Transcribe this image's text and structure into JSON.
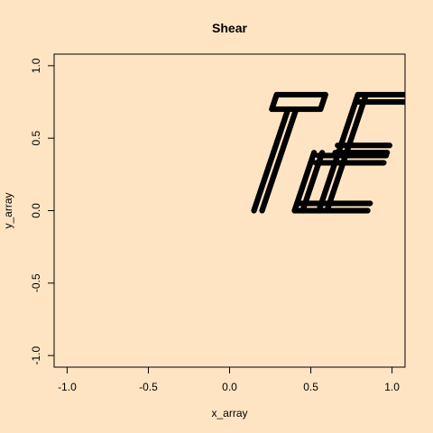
{
  "chart_data": {
    "type": "scatter",
    "title": "Shear",
    "xlabel": "x_array",
    "ylabel": "y_array",
    "xlim": [
      -1.08,
      1.08
    ],
    "ylim": [
      -1.08,
      1.08
    ],
    "xticks": [
      -1.0,
      -0.5,
      0.0,
      0.5,
      1.0
    ],
    "yticks": [
      -1.0,
      -0.5,
      0.0,
      0.5,
      1.0
    ],
    "xtick_labels": [
      "-1.0",
      "-0.5",
      "0.0",
      "0.5",
      "1.0"
    ],
    "ytick_labels": [
      "-1.0",
      "-0.5",
      "0.0",
      "0.5",
      "1.0"
    ],
    "grid": false,
    "marker": "open-circle",
    "marker_color": "#000000",
    "background_color": "#FFE4C4",
    "shear_factor": 0.3,
    "point_step": 0.005,
    "glyph_segments": [
      {
        "x": [
          0.3,
          0.6
        ],
        "y": [
          0.8,
          0.8
        ]
      },
      {
        "x": [
          0.3,
          0.6
        ],
        "y": [
          0.7,
          0.7
        ]
      },
      {
        "x": [
          0.3,
          0.3
        ],
        "y": [
          0.7,
          0.8
        ]
      },
      {
        "x": [
          0.6,
          0.6
        ],
        "y": [
          0.7,
          0.8
        ]
      },
      {
        "x": [
          0.4,
          0.4
        ],
        "y": [
          0.0,
          0.7
        ]
      },
      {
        "x": [
          0.45,
          0.45
        ],
        "y": [
          0.0,
          0.7
        ]
      },
      {
        "x": [
          0.65,
          1.1
        ],
        "y": [
          0.0,
          0.0
        ]
      },
      {
        "x": [
          0.65,
          1.1
        ],
        "y": [
          0.05,
          0.05
        ]
      },
      {
        "x": [
          0.65,
          0.65
        ],
        "y": [
          0.0,
          0.4
        ]
      },
      {
        "x": [
          0.7,
          0.7
        ],
        "y": [
          0.0,
          0.4
        ]
      },
      {
        "x": [
          0.68,
          1.1
        ],
        "y": [
          0.33,
          0.33
        ]
      },
      {
        "x": [
          0.68,
          1.1
        ],
        "y": [
          0.38,
          0.38
        ]
      },
      {
        "x": [
          0.8,
          0.8
        ],
        "y": [
          0.0,
          0.8
        ]
      },
      {
        "x": [
          0.85,
          0.85
        ],
        "y": [
          0.0,
          0.8
        ]
      },
      {
        "x": [
          0.8,
          1.1
        ],
        "y": [
          0.75,
          0.75
        ]
      },
      {
        "x": [
          0.8,
          1.1
        ],
        "y": [
          0.8,
          0.8
        ]
      },
      {
        "x": [
          0.78,
          1.1
        ],
        "y": [
          0.45,
          0.45
        ]
      },
      {
        "x": [
          0.78,
          1.1
        ],
        "y": [
          0.4,
          0.4
        ]
      }
    ]
  }
}
